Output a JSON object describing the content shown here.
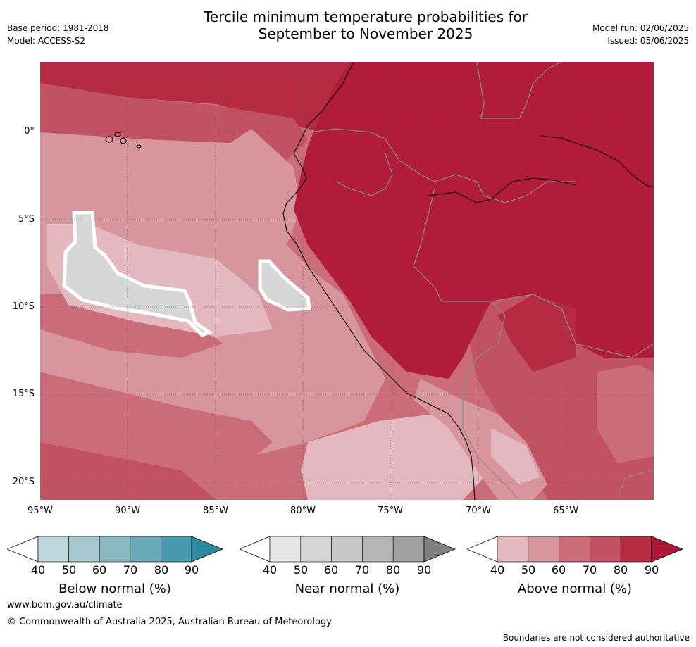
{
  "title_line1": "Tercile minimum temperature probabilities for",
  "title_line2": "September to November 2025",
  "meta_left": {
    "base_period": "Base period: 1981-2018",
    "model": "Model: ACCESS-S2"
  },
  "meta_right": {
    "model_run": "Model run: 02/06/2025",
    "issued": "Issued: 05/06/2025"
  },
  "lat_labels": [
    "0°",
    "5°S",
    "10°S",
    "15°S",
    "20°S"
  ],
  "lon_labels": [
    "95°W",
    "90°W",
    "85°W",
    "80°W",
    "75°W",
    "70°W",
    "65°W"
  ],
  "colorbars": [
    {
      "title": "Below normal (%)",
      "ticks": [
        "40",
        "50",
        "60",
        "70",
        "80",
        "90"
      ],
      "colors": [
        "#bdd7dd",
        "#a6c9d0",
        "#8ab8c3",
        "#6aa9b7",
        "#4a9aad",
        "#2b8aa0"
      ]
    },
    {
      "title": "Near normal (%)",
      "ticks": [
        "40",
        "50",
        "60",
        "70",
        "80",
        "90"
      ],
      "colors": [
        "#e6e6e6",
        "#d6d6d6",
        "#c8c8c8",
        "#b6b6b6",
        "#a0a0a0",
        "#808080"
      ]
    },
    {
      "title": "Above normal (%)",
      "ticks": [
        "40",
        "50",
        "60",
        "70",
        "80",
        "90"
      ],
      "colors": [
        "#e3b8be",
        "#d7959e",
        "#cb6d79",
        "#c25161",
        "#b52b41",
        "#ad1737"
      ]
    }
  ],
  "footer": {
    "url": "www.bom.gov.au/climate",
    "copyright": "© Commonwealth of Australia 2025, Australian Bureau of Meteorology",
    "disclaimer": "Boundaries are not considered authoritative"
  },
  "map_colors": {
    "ocean_base": "#cb6d79",
    "dark": "#b01c3a",
    "mid": "#c25161",
    "light": "#d7959e",
    "lighter": "#e3b8be",
    "grey": "#d6d6d6",
    "coast": "#000000",
    "border": "#808080"
  }
}
